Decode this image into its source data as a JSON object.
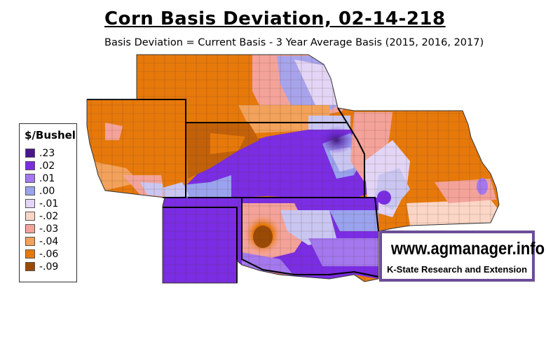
{
  "header": {
    "title": "Corn Basis Deviation, 02-14-218",
    "subtitle": "Basis Deviation = Current Basis - 3 Year Average Basis (2015, 2016, 2017)"
  },
  "legend": {
    "title": "$/Bushel",
    "items": [
      {
        "label": ".23",
        "color": "#4a1590"
      },
      {
        "label": ".02",
        "color": "#7a2de3"
      },
      {
        "label": ".01",
        "color": "#a478ee"
      },
      {
        "label": ".00",
        "color": "#9aa3ee"
      },
      {
        "label": "-.01",
        "color": "#e3d5f5"
      },
      {
        "label": "-.02",
        "color": "#fbd6c6"
      },
      {
        "label": "-.03",
        "color": "#f4a39a"
      },
      {
        "label": "-.04",
        "color": "#f2a25a"
      },
      {
        "label": "-.06",
        "color": "#e7790b"
      },
      {
        "label": "-.09",
        "color": "#9b4a06"
      }
    ]
  },
  "branding": {
    "url": "www.agmanager.info",
    "org": "K-State Research and Extension"
  },
  "map": {
    "regions": [
      "Nebraska",
      "Kansas",
      "Missouri",
      "Colorado",
      "Oklahoma",
      "Texas Panhandle"
    ]
  }
}
